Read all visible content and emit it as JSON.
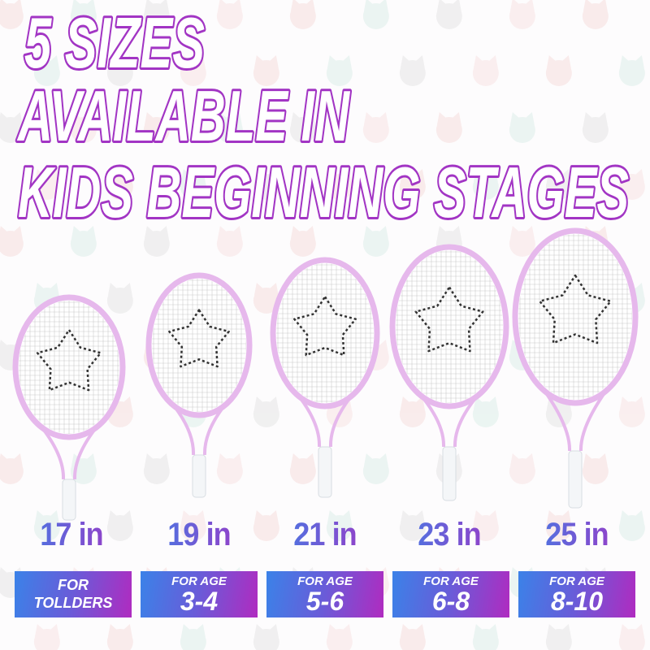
{
  "headline": {
    "lines": [
      "5 SIZES",
      "AVAILABLE IN",
      "KIDS BEGINNING STAGES"
    ],
    "gradient": [
      "#3f7fe6",
      "#a235c4"
    ]
  },
  "background_pattern": "pastel cat heads, hearts and fish",
  "racket_colors": {
    "frame": "#e6b8ec",
    "grip": "#f4f6f8",
    "stencil": "#333333"
  },
  "products": [
    {
      "size": "17 in",
      "age_label": "FOR",
      "age_value": "TOLLDERS"
    },
    {
      "size": "19 in",
      "age_label": "FOR AGE",
      "age_value": "3-4"
    },
    {
      "size": "21 in",
      "age_label": "FOR AGE",
      "age_value": "5-6"
    },
    {
      "size": "23 in",
      "age_label": "FOR AGE",
      "age_value": "6-8"
    },
    {
      "size": "25 in",
      "age_label": "FOR AGE",
      "age_value": "8-10"
    }
  ]
}
